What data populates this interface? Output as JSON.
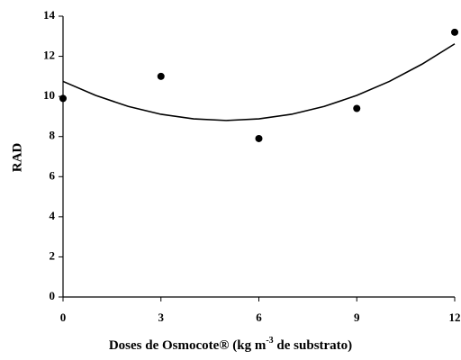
{
  "chart_data": {
    "type": "scatter",
    "x_label": [
      "Doses de Osmocote® (kg m",
      "-3",
      " de substrato)"
    ],
    "y_label": "RAD",
    "series": [
      {
        "mode": "markers",
        "color": "#000000",
        "x": [
          0,
          3,
          6,
          9,
          12
        ],
        "values": [
          9.9,
          11.0,
          7.9,
          9.4,
          13.2
        ]
      },
      {
        "mode": "line",
        "color": "#000000",
        "x": [
          0,
          1,
          2,
          3,
          4,
          5,
          6,
          7,
          8,
          9,
          10,
          11,
          12
        ],
        "values": [
          10.75,
          10.05,
          9.5,
          9.11,
          8.88,
          8.8,
          8.88,
          9.11,
          9.5,
          10.05,
          10.75,
          11.61,
          12.62
        ]
      }
    ],
    "xlim": [
      0,
      12
    ],
    "xticks": [
      0,
      3,
      6,
      9,
      12
    ],
    "ylim": [
      0,
      14
    ],
    "yticks": [
      0,
      2,
      4,
      6,
      8,
      10,
      12,
      14
    ]
  }
}
